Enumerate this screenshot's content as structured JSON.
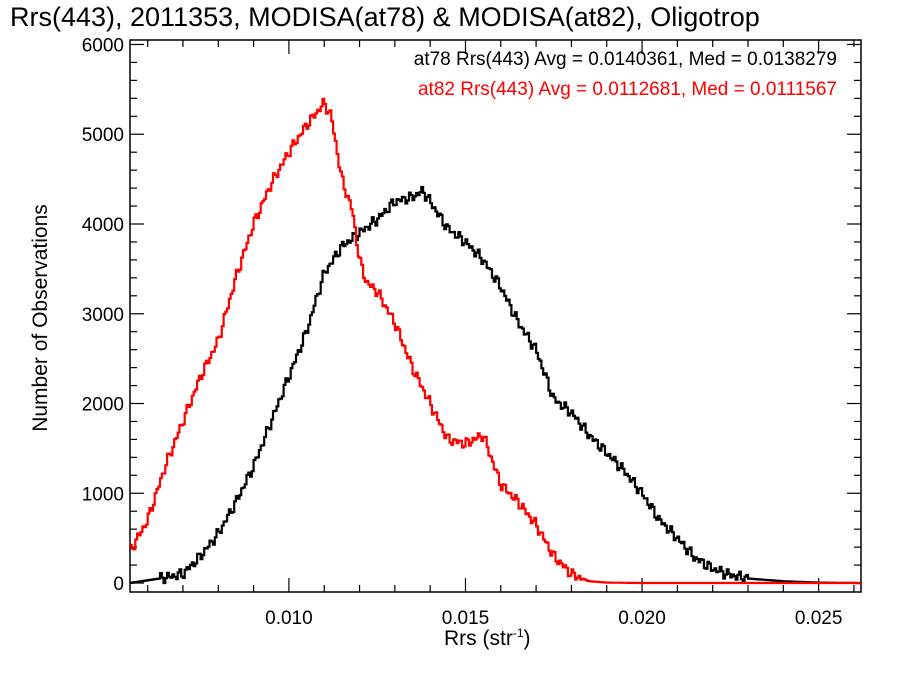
{
  "chart_data": {
    "type": "line",
    "title": "Rrs(443), 2011353, MODISA(at78) & MODISA(at82), Oligotrop",
    "xlabel_main": "Rrs (str",
    "xlabel_sup": "-1",
    "xlabel_close": ")",
    "ylabel": "Number of Observations",
    "xlim": [
      0.0055,
      0.0262
    ],
    "ylim": [
      -100,
      6050
    ],
    "xticks": [
      0.01,
      0.015,
      0.02,
      0.025
    ],
    "xtick_labels": [
      "0.010",
      "0.015",
      "0.020",
      "0.025"
    ],
    "yticks": [
      0,
      1000,
      2000,
      3000,
      4000,
      5000,
      6000
    ],
    "ytick_labels": [
      "0",
      "1000",
      "2000",
      "3000",
      "4000",
      "5000",
      "6000"
    ],
    "grid": false,
    "legend_placement": "top-right",
    "series": [
      {
        "name": "at78 Rrs(443) Avg = 0.0140361, Med = 0.0138279",
        "color": "#000000",
        "x": [
          0.0055,
          0.006,
          0.0065,
          0.007,
          0.0075,
          0.008,
          0.0085,
          0.009,
          0.0095,
          0.01,
          0.0105,
          0.011,
          0.0115,
          0.012,
          0.0125,
          0.013,
          0.0135,
          0.0138,
          0.014,
          0.0145,
          0.015,
          0.0155,
          0.016,
          0.0165,
          0.017,
          0.0175,
          0.018,
          0.0185,
          0.019,
          0.0195,
          0.02,
          0.0205,
          0.021,
          0.0215,
          0.022,
          0.0225,
          0.023,
          0.024,
          0.025,
          0.0262
        ],
        "y": [
          0,
          30,
          60,
          100,
          300,
          550,
          900,
          1300,
          1800,
          2300,
          2800,
          3450,
          3750,
          3900,
          4050,
          4250,
          4300,
          4370,
          4250,
          3950,
          3800,
          3600,
          3300,
          2900,
          2600,
          2050,
          1900,
          1650,
          1450,
          1250,
          1000,
          700,
          500,
          280,
          160,
          90,
          50,
          20,
          5,
          0
        ]
      },
      {
        "name": "at82 Rrs(443) Avg = 0.0112681, Med = 0.0111567",
        "color": "#ff0000",
        "x": [
          0.0055,
          0.006,
          0.0065,
          0.007,
          0.0075,
          0.008,
          0.0085,
          0.009,
          0.0095,
          0.01,
          0.0105,
          0.011,
          0.0112,
          0.0115,
          0.0118,
          0.012,
          0.0122,
          0.0125,
          0.013,
          0.0135,
          0.014,
          0.0145,
          0.015,
          0.0155,
          0.016,
          0.0165,
          0.017,
          0.0175,
          0.018,
          0.0185,
          0.019,
          0.02,
          0.021,
          0.0262
        ],
        "y": [
          350,
          700,
          1300,
          1800,
          2300,
          2700,
          3400,
          4000,
          4450,
          4800,
          5100,
          5350,
          5200,
          4500,
          4150,
          3600,
          3350,
          3250,
          2900,
          2400,
          2000,
          1600,
          1550,
          1650,
          1100,
          900,
          650,
          300,
          100,
          20,
          5,
          0,
          0,
          0
        ]
      }
    ]
  }
}
